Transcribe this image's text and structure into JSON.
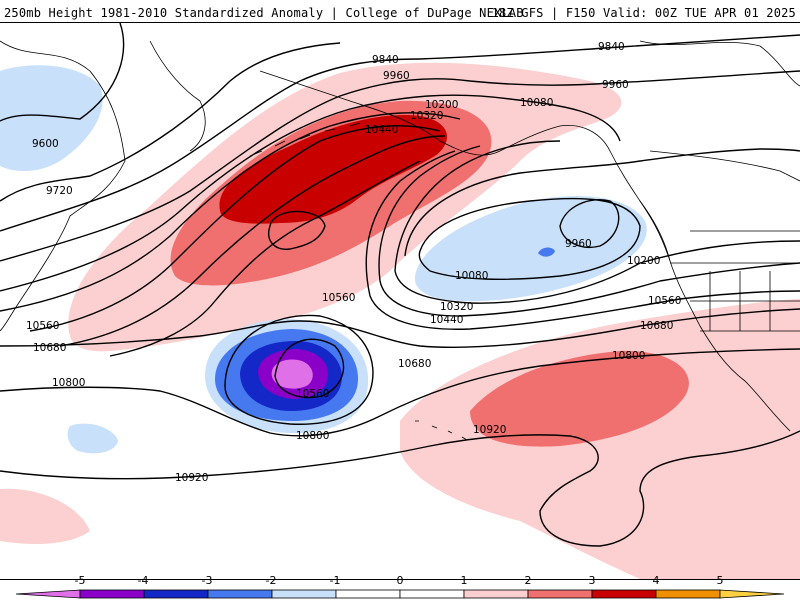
{
  "header": {
    "title_left": "250mb Height 1981-2010 Standardized Anomaly | College of DuPage NEXLAB",
    "title_right": "18Z GFS | F150 Valid: 00Z TUE APR 01 2025"
  },
  "colors": {
    "neg5": "#e070e8",
    "neg4": "#8b00c8",
    "neg3": "#1428c8",
    "neg2": "#4678f0",
    "neg1": "#c8e0fa",
    "pos1": "#fcd0d0",
    "pos2": "#f07070",
    "pos3": "#c80000",
    "pos4": "#f09000",
    "pos5": "#fcd040",
    "contour": "#000000",
    "coast": "#000000"
  },
  "legend": {
    "ticks": [
      "-5",
      "-4",
      "-3",
      "-2",
      "-1",
      "0",
      "1",
      "2",
      "3",
      "4",
      "5"
    ],
    "bins": [
      {
        "color": "#e070e8"
      },
      {
        "color": "#8b00c8"
      },
      {
        "color": "#1428c8"
      },
      {
        "color": "#4678f0"
      },
      {
        "color": "#c8e0fa"
      },
      {
        "color": "#ffffff"
      },
      {
        "color": "#ffffff"
      },
      {
        "color": "#fcd0d0"
      },
      {
        "color": "#f07070"
      },
      {
        "color": "#c80000"
      },
      {
        "color": "#f09000"
      },
      {
        "color": "#fcd040"
      }
    ]
  },
  "contour_labels": [
    "9840",
    "9840",
    "9960",
    "9960",
    "9600",
    "9720",
    "10080",
    "10200",
    "10320",
    "10440",
    "9960",
    "10080",
    "10200",
    "10560",
    "10560",
    "10320",
    "10440",
    "10560",
    "10680",
    "10680",
    "10800",
    "10560",
    "10680",
    "10800",
    "10800",
    "10920",
    "10920"
  ]
}
